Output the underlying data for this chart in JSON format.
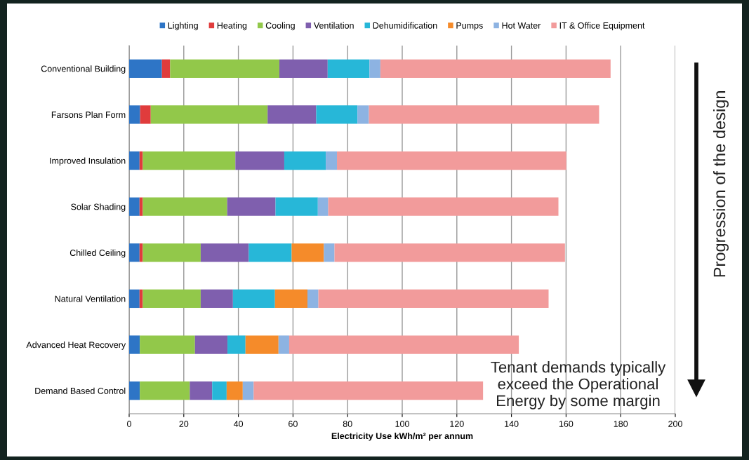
{
  "chart_data": {
    "type": "bar",
    "orientation": "horizontal",
    "stacked": true,
    "categories": [
      "Conventional Building",
      "Farsons Plan Form",
      "Improved Insulation",
      "Solar Shading",
      "Chilled Ceiling",
      "Natural Ventilation",
      "Advanced Heat Recovery",
      "Demand Based Control"
    ],
    "series": [
      {
        "name": "Lighting",
        "color": "#2e75c6",
        "values": [
          12.0,
          4.0,
          3.8,
          3.8,
          3.8,
          3.8,
          3.9,
          3.9
        ]
      },
      {
        "name": "Heating",
        "color": "#e03c3c",
        "values": [
          3.0,
          3.9,
          1.2,
          1.2,
          1.2,
          1.2,
          0,
          0
        ]
      },
      {
        "name": "Cooling",
        "color": "#92c84a",
        "values": [
          40.0,
          42.8,
          33.9,
          30.9,
          21.2,
          21.2,
          20.2,
          18.3
        ]
      },
      {
        "name": "Ventilation",
        "color": "#7f5fae",
        "values": [
          17.7,
          17.8,
          17.9,
          17.7,
          17.6,
          11.8,
          11.9,
          8.2
        ]
      },
      {
        "name": "Dehumidification",
        "color": "#27b7d8",
        "values": [
          15.3,
          15.1,
          15.2,
          15.5,
          15.7,
          15.4,
          6.6,
          5.3
        ]
      },
      {
        "name": "Pumps",
        "color": "#f58b2a",
        "values": [
          0,
          0,
          0,
          0,
          11.8,
          11.9,
          12.1,
          5.9
        ]
      },
      {
        "name": "Hot Water",
        "color": "#8db3e2",
        "values": [
          4.0,
          4.2,
          4.1,
          3.8,
          3.9,
          4.0,
          3.9,
          4.0
        ]
      },
      {
        "name": "IT & Office Equipment",
        "color": "#f29b9b",
        "values": [
          84.3,
          84.3,
          84.0,
          84.3,
          84.4,
          84.3,
          84.1,
          84.0
        ]
      }
    ],
    "xlabel": "Electricity Use kWh/m² per annum",
    "xlim": [
      0,
      200
    ],
    "xticks": [
      0,
      20,
      40,
      60,
      80,
      100,
      120,
      140,
      160,
      180,
      200
    ],
    "grid": "x",
    "legend": "top",
    "annotations": [
      "Tenant demands typically\nexceed the Operational\nEnergy by some margin",
      "Progression of the design"
    ]
  }
}
